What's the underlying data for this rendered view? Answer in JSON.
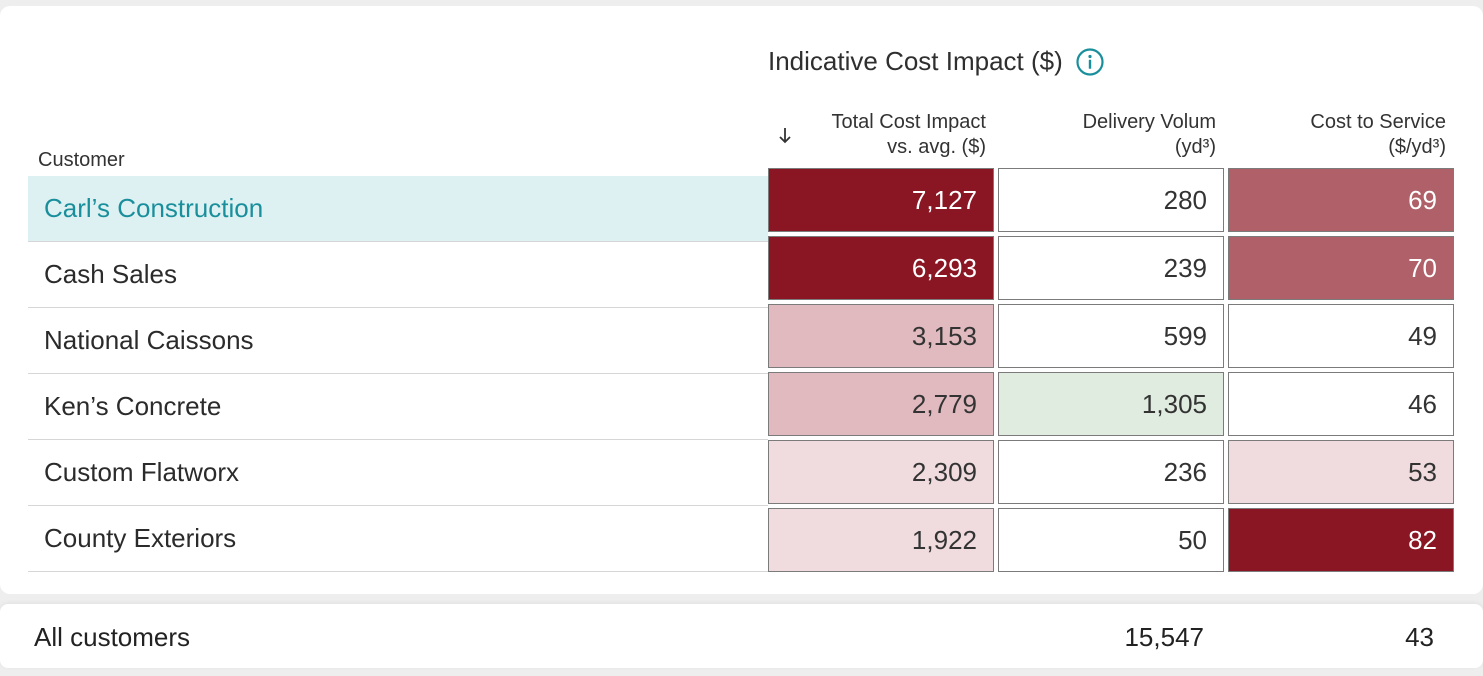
{
  "header": {
    "group_title": "Indicative Cost Impact ($)",
    "customer_label": "Customer",
    "columns": [
      {
        "line1": "Total Cost Impact",
        "line2": "vs. avg. ($)"
      },
      {
        "line1": "Delivery Volum",
        "line2": "(yd³)"
      },
      {
        "line1": "Cost to Service",
        "line2": "($/yd³)"
      }
    ],
    "sort_icon": "arrow-down-icon",
    "info_icon": "info-circle-icon"
  },
  "rows": [
    {
      "customer": "Carl’s Construction",
      "total_cost_impact": "7,127",
      "delivery_volume": "280",
      "cost_to_service": "69",
      "selected": true
    },
    {
      "customer": "Cash Sales",
      "total_cost_impact": "6,293",
      "delivery_volume": "239",
      "cost_to_service": "70"
    },
    {
      "customer": "National Caissons",
      "total_cost_impact": "3,153",
      "delivery_volume": "599",
      "cost_to_service": "49"
    },
    {
      "customer": "Ken’s Concrete",
      "total_cost_impact": "2,779",
      "delivery_volume": "1,305",
      "cost_to_service": "46"
    },
    {
      "customer": "Custom Flatworx",
      "total_cost_impact": "2,309",
      "delivery_volume": "236",
      "cost_to_service": "53"
    },
    {
      "customer": "County Exteriors",
      "total_cost_impact": "1,922",
      "delivery_volume": "50",
      "cost_to_service": "82"
    }
  ],
  "cell_colors": {
    "dark_red": "#8a1523",
    "mid_red": "#b06068",
    "pink": "#e0babf",
    "light_pink": "#f0dcdf",
    "light_green": "#e1ece1",
    "white": "#ffffff",
    "selected_row": "#ddf0f2",
    "accent_teal": "#1a8f9c"
  },
  "footer": {
    "label": "All customers",
    "delivery_volume_total": "15,547",
    "cost_to_service_avg": "43"
  }
}
